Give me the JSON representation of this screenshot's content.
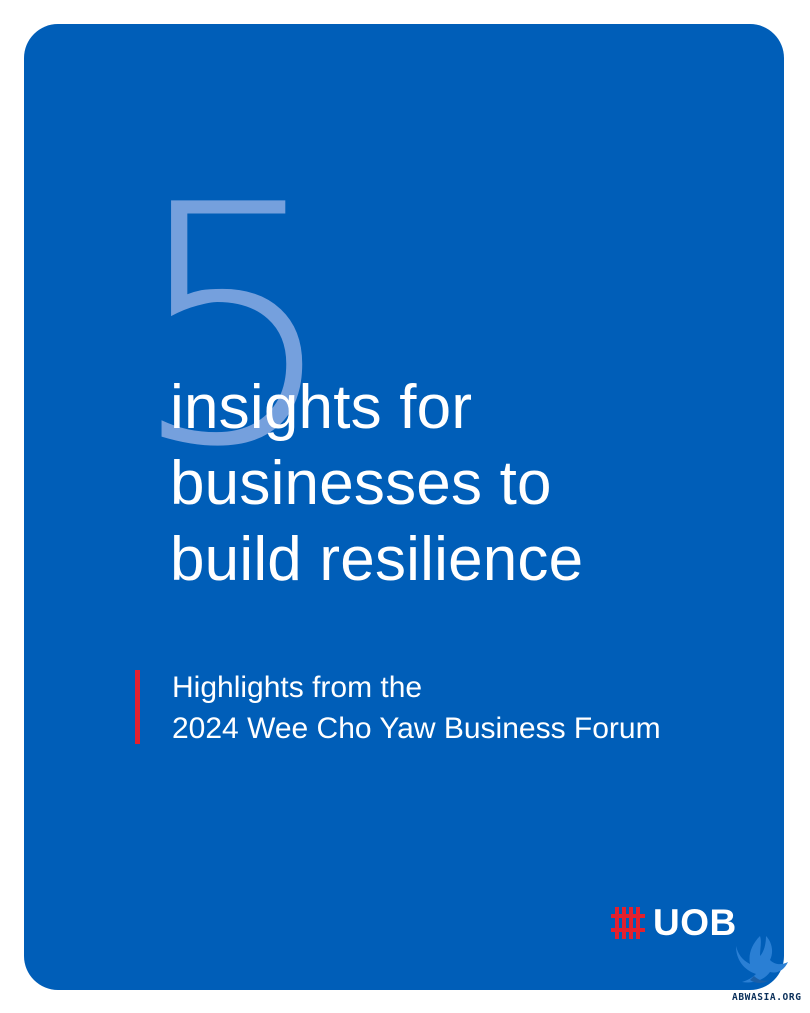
{
  "cover": {
    "number": "5",
    "headline_lines": [
      "insights for",
      "businesses to",
      "build resilience"
    ],
    "subtitle_lines": [
      "Highlights from the",
      "2024 Wee Cho Yaw Business Forum"
    ]
  },
  "brand": {
    "logo_text": "UOB",
    "logo_icon": "uob-logo-icon"
  },
  "watermark": {
    "text": "ABWASIA.ORG",
    "icon": "bird-icon"
  },
  "colors": {
    "card_background": "#005EB8",
    "accent_red": "#E4202E",
    "text": "#FFFFFF",
    "number": "#96B4E8"
  }
}
